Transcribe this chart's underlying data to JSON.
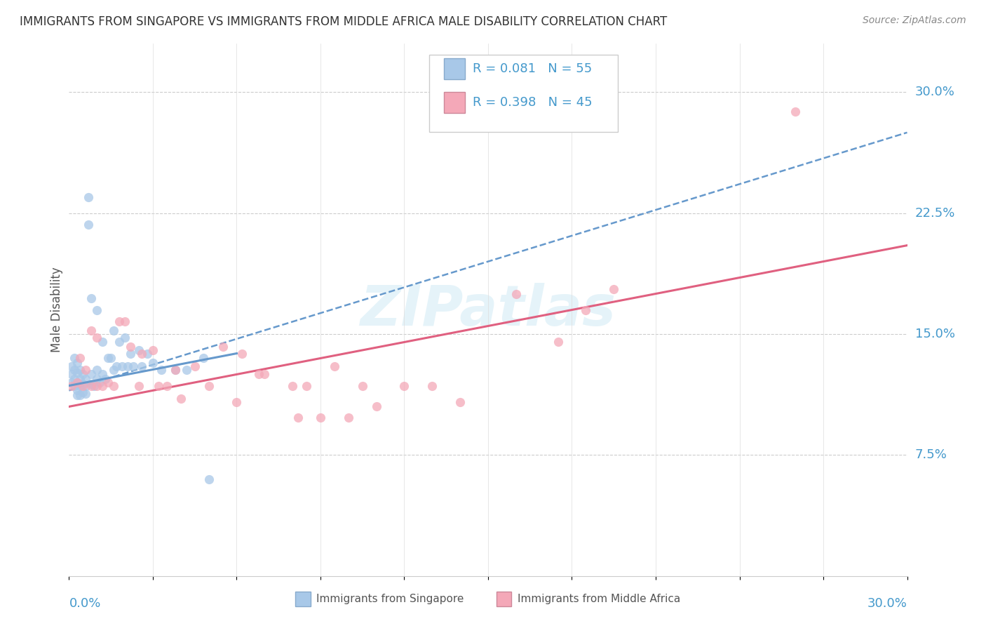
{
  "title": "IMMIGRANTS FROM SINGAPORE VS IMMIGRANTS FROM MIDDLE AFRICA MALE DISABILITY CORRELATION CHART",
  "source": "Source: ZipAtlas.com",
  "ylabel": "Male Disability",
  "ytick_vals": [
    0.075,
    0.15,
    0.225,
    0.3
  ],
  "ytick_labels": [
    "7.5%",
    "15.0%",
    "22.5%",
    "30.0%"
  ],
  "xlim": [
    0.0,
    0.3
  ],
  "ylim": [
    0.0,
    0.33
  ],
  "color_singapore": "#a8c8e8",
  "color_middle_africa": "#f4a8b8",
  "color_singapore_line": "#6699cc",
  "color_middle_africa_line": "#e06080",
  "color_text_blue": "#4499cc",
  "watermark": "ZIPatlas",
  "sg_line_x0": 0.0,
  "sg_line_x1": 0.3,
  "sg_line_y0": 0.115,
  "sg_line_y1": 0.275,
  "ma_line_x0": 0.0,
  "ma_line_x1": 0.3,
  "ma_line_y0": 0.105,
  "ma_line_y1": 0.205,
  "singapore_x": [
    0.001,
    0.001,
    0.001,
    0.002,
    0.002,
    0.002,
    0.002,
    0.003,
    0.003,
    0.003,
    0.003,
    0.003,
    0.004,
    0.004,
    0.004,
    0.004,
    0.005,
    0.005,
    0.005,
    0.006,
    0.006,
    0.006,
    0.007,
    0.007,
    0.008,
    0.008,
    0.008,
    0.009,
    0.01,
    0.01,
    0.01,
    0.011,
    0.012,
    0.012,
    0.013,
    0.014,
    0.015,
    0.016,
    0.016,
    0.017,
    0.018,
    0.019,
    0.02,
    0.021,
    0.022,
    0.023,
    0.025,
    0.026,
    0.028,
    0.03,
    0.033,
    0.038,
    0.042,
    0.048,
    0.05
  ],
  "singapore_y": [
    0.13,
    0.125,
    0.12,
    0.135,
    0.128,
    0.122,
    0.118,
    0.132,
    0.126,
    0.12,
    0.115,
    0.112,
    0.128,
    0.122,
    0.118,
    0.112,
    0.125,
    0.119,
    0.114,
    0.122,
    0.118,
    0.113,
    0.235,
    0.218,
    0.172,
    0.125,
    0.119,
    0.118,
    0.165,
    0.128,
    0.122,
    0.12,
    0.145,
    0.125,
    0.122,
    0.135,
    0.135,
    0.152,
    0.128,
    0.13,
    0.145,
    0.13,
    0.148,
    0.13,
    0.138,
    0.13,
    0.14,
    0.13,
    0.138,
    0.132,
    0.128,
    0.128,
    0.128,
    0.135,
    0.06
  ],
  "middle_africa_x": [
    0.001,
    0.003,
    0.004,
    0.005,
    0.006,
    0.008,
    0.008,
    0.01,
    0.01,
    0.012,
    0.014,
    0.016,
    0.018,
    0.02,
    0.022,
    0.025,
    0.026,
    0.03,
    0.032,
    0.035,
    0.038,
    0.04,
    0.045,
    0.05,
    0.055,
    0.06,
    0.062,
    0.068,
    0.07,
    0.08,
    0.082,
    0.085,
    0.09,
    0.095,
    0.1,
    0.105,
    0.11,
    0.12,
    0.13,
    0.14,
    0.16,
    0.175,
    0.185,
    0.195,
    0.26
  ],
  "middle_africa_y": [
    0.118,
    0.12,
    0.135,
    0.118,
    0.128,
    0.152,
    0.118,
    0.148,
    0.118,
    0.118,
    0.12,
    0.118,
    0.158,
    0.158,
    0.142,
    0.118,
    0.138,
    0.14,
    0.118,
    0.118,
    0.128,
    0.11,
    0.13,
    0.118,
    0.142,
    0.108,
    0.138,
    0.125,
    0.125,
    0.118,
    0.098,
    0.118,
    0.098,
    0.13,
    0.098,
    0.118,
    0.105,
    0.118,
    0.118,
    0.108,
    0.175,
    0.145,
    0.165,
    0.178,
    0.288
  ]
}
